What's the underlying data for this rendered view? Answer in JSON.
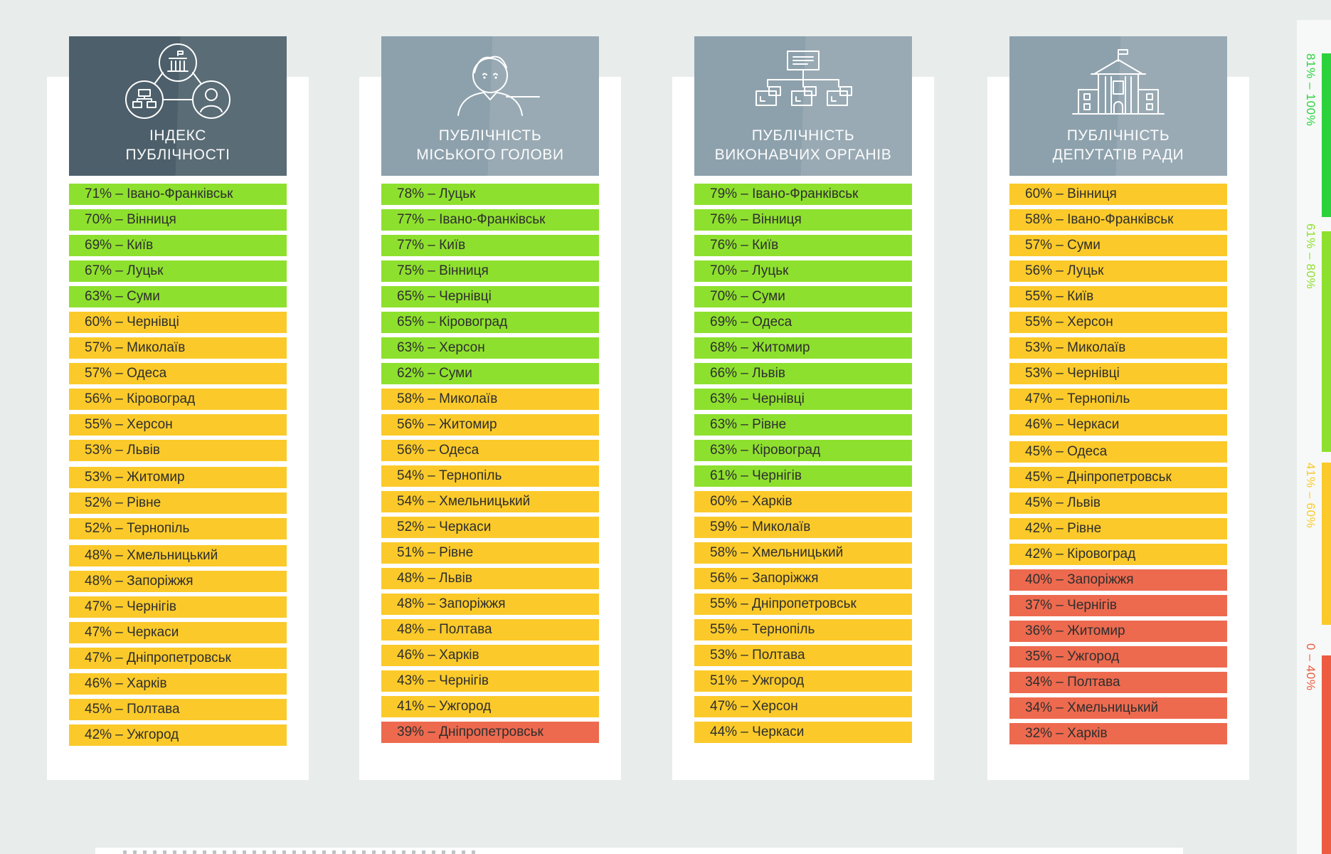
{
  "palette": {
    "background": "#E8EDEC",
    "panel": "#FFFFFF",
    "strip": "#F7F9F8",
    "green": "#8EE02E",
    "yellow": "#FBCA2A",
    "red": "#ED6A4F",
    "text": "#2E2E2E",
    "head_dark_left": "#4C5F6A",
    "head_dark_right": "#5A6C76",
    "head_light_left": "#8DA1AC",
    "head_light_right": "#99AAB4"
  },
  "legend": {
    "bands": [
      {
        "label": "81% – 100%",
        "color": "#2BD23C"
      },
      {
        "label": "61% – 80%",
        "color": "#8EE02E"
      },
      {
        "label": "41% – 60%",
        "color": "#FBCA2A"
      },
      {
        "label": "0 – 40%",
        "color": "#ED5B40"
      }
    ]
  },
  "columns": [
    {
      "title": "ІНДЕКС\nПУБЛІЧНОСТІ",
      "icon": "network-icon",
      "theme": "dark",
      "items": [
        {
          "label": "71% – Івано-Франківськ",
          "level": "green"
        },
        {
          "label": "70% – Вінниця",
          "level": "green"
        },
        {
          "label": "69% – Київ",
          "level": "green"
        },
        {
          "label": "67% – Луцьк",
          "level": "green"
        },
        {
          "label": "63% – Суми",
          "level": "green"
        },
        {
          "label": "60% – Чернівці",
          "level": "yellow"
        },
        {
          "label": "57% – Миколаїв",
          "level": "yellow"
        },
        {
          "label": "57% – Одеса",
          "level": "yellow"
        },
        {
          "label": "56% – Кіровоград",
          "level": "yellow"
        },
        {
          "label": "55% – Херсон",
          "level": "yellow"
        },
        {
          "label": "53% – Львів",
          "level": "yellow"
        },
        {
          "label": "53% – Житомир",
          "level": "yellow",
          "gap_before": true
        },
        {
          "label": "52% – Рівне",
          "level": "yellow"
        },
        {
          "label": "52% – Тернопіль",
          "level": "yellow"
        },
        {
          "label": "48% – Хмельницький",
          "level": "yellow",
          "gap_before": true
        },
        {
          "label": "48% – Запоріжжя",
          "level": "yellow"
        },
        {
          "label": "47% – Чернігів",
          "level": "yellow"
        },
        {
          "label": "47% – Черкаси",
          "level": "yellow"
        },
        {
          "label": "47% – Дніпропетровськ",
          "level": "yellow"
        },
        {
          "label": "46% – Харків",
          "level": "yellow"
        },
        {
          "label": "45% – Полтава",
          "level": "yellow"
        },
        {
          "label": "42% – Ужгород",
          "level": "yellow"
        }
      ]
    },
    {
      "title": "ПУБЛІЧНІСТЬ\nМІСЬКОГО ГОЛОВИ",
      "icon": "mayor-icon",
      "theme": "light",
      "items": [
        {
          "label": "78% – Луцьк",
          "level": "green"
        },
        {
          "label": "77% – Івано-Франківськ",
          "level": "green"
        },
        {
          "label": "77% – Київ",
          "level": "green"
        },
        {
          "label": "75% – Вінниця",
          "level": "green"
        },
        {
          "label": "65% – Чернівці",
          "level": "green"
        },
        {
          "label": "65% – Кіровоград",
          "level": "green"
        },
        {
          "label": "63% – Херсон",
          "level": "green"
        },
        {
          "label": "62% – Суми",
          "level": "green"
        },
        {
          "label": "58% – Миколаїв",
          "level": "yellow"
        },
        {
          "label": "56% – Житомир",
          "level": "yellow"
        },
        {
          "label": "56% – Одеса",
          "level": "yellow"
        },
        {
          "label": "54% – Тернопіль",
          "level": "yellow"
        },
        {
          "label": "54% – Хмельницький",
          "level": "yellow"
        },
        {
          "label": "52% – Черкаси",
          "level": "yellow"
        },
        {
          "label": "51% – Рівне",
          "level": "yellow"
        },
        {
          "label": "48% – Львів",
          "level": "yellow"
        },
        {
          "label": "48% – Запоріжжя",
          "level": "yellow"
        },
        {
          "label": "48% – Полтава",
          "level": "yellow"
        },
        {
          "label": "46% – Харків",
          "level": "yellow"
        },
        {
          "label": "43% – Чернігів",
          "level": "yellow"
        },
        {
          "label": "41% – Ужгород",
          "level": "yellow"
        },
        {
          "label": "39% – Дніпропетровськ",
          "level": "red"
        }
      ]
    },
    {
      "title": "ПУБЛІЧНІСТЬ\nВИКОНАВЧИХ ОРГАНІВ",
      "icon": "org-chart-icon",
      "theme": "light",
      "items": [
        {
          "label": "79% – Івано-Франківськ",
          "level": "green"
        },
        {
          "label": "76% – Вінниця",
          "level": "green"
        },
        {
          "label": "76% – Київ",
          "level": "green"
        },
        {
          "label": "70% – Луцьк",
          "level": "green"
        },
        {
          "label": "70% – Суми",
          "level": "green"
        },
        {
          "label": "69% – Одеса",
          "level": "green"
        },
        {
          "label": "68% – Житомир",
          "level": "green"
        },
        {
          "label": "66% – Львів",
          "level": "green"
        },
        {
          "label": "63% – Чернівці",
          "level": "green"
        },
        {
          "label": "63% – Рівне",
          "level": "green"
        },
        {
          "label": "63% – Кіровоград",
          "level": "green"
        },
        {
          "label": "61% – Чернігів",
          "level": "green"
        },
        {
          "label": "60% – Харків",
          "level": "yellow"
        },
        {
          "label": "59% – Миколаїв",
          "level": "yellow"
        },
        {
          "label": "58% – Хмельницький",
          "level": "yellow"
        },
        {
          "label": "56% – Запоріжжя",
          "level": "yellow"
        },
        {
          "label": "55% – Дніпропетровськ",
          "level": "yellow"
        },
        {
          "label": "55% – Тернопіль",
          "level": "yellow"
        },
        {
          "label": "53% – Полтава",
          "level": "yellow"
        },
        {
          "label": "51% – Ужгород",
          "level": "yellow"
        },
        {
          "label": "47% – Херсон",
          "level": "yellow"
        },
        {
          "label": "44% – Черкаси",
          "level": "yellow"
        }
      ]
    },
    {
      "title": "ПУБЛІЧНІСТЬ\nДЕПУТАТІВ РАДИ",
      "icon": "council-icon",
      "theme": "light",
      "items": [
        {
          "label": "60% – Вінниця",
          "level": "yellow"
        },
        {
          "label": "58% – Івано-Франківськ",
          "level": "yellow"
        },
        {
          "label": "57% – Суми",
          "level": "yellow"
        },
        {
          "label": "56% – Луцьк",
          "level": "yellow"
        },
        {
          "label": "55% – Київ",
          "level": "yellow"
        },
        {
          "label": "55% – Херсон",
          "level": "yellow"
        },
        {
          "label": "53% – Миколаїв",
          "level": "yellow"
        },
        {
          "label": "53% – Чернівці",
          "level": "yellow"
        },
        {
          "label": "47% – Тернопіль",
          "level": "yellow"
        },
        {
          "label": "46% – Черкаси",
          "level": "yellow"
        },
        {
          "label": "45% – Одеса",
          "level": "yellow",
          "gap_before": true
        },
        {
          "label": "45% – Дніпропетровськ",
          "level": "yellow"
        },
        {
          "label": "45% – Львів",
          "level": "yellow"
        },
        {
          "label": "42% – Рівне",
          "level": "yellow"
        },
        {
          "label": "42% – Кіровоград",
          "level": "yellow"
        },
        {
          "label": "40% – Запоріжжя",
          "level": "red"
        },
        {
          "label": "37% – Чернігів",
          "level": "red"
        },
        {
          "label": "36% – Житомир",
          "level": "red"
        },
        {
          "label": "35% – Ужгород",
          "level": "red"
        },
        {
          "label": "34% – Полтава",
          "level": "red"
        },
        {
          "label": "34% – Хмельницький",
          "level": "red"
        },
        {
          "label": "32% – Харків",
          "level": "red"
        }
      ]
    }
  ],
  "chart_data": {
    "type": "bar",
    "title": "",
    "legend_position": "right-edge-vertical",
    "legend_bands": [
      "81% – 100%",
      "61% – 80%",
      "41% – 60%",
      "0 – 40%"
    ],
    "series": [
      {
        "name": "ІНДЕКС ПУБЛІЧНОСТІ",
        "categories": [
          "Івано-Франківськ",
          "Вінниця",
          "Київ",
          "Луцьк",
          "Суми",
          "Чернівці",
          "Миколаїв",
          "Одеса",
          "Кіровоград",
          "Херсон",
          "Львів",
          "Житомир",
          "Рівне",
          "Тернопіль",
          "Хмельницький",
          "Запоріжжя",
          "Чернігів",
          "Черкаси",
          "Дніпропетровськ",
          "Харків",
          "Полтава",
          "Ужгород"
        ],
        "values": [
          71,
          70,
          69,
          67,
          63,
          60,
          57,
          57,
          56,
          55,
          53,
          53,
          52,
          52,
          48,
          48,
          47,
          47,
          47,
          46,
          45,
          42
        ]
      },
      {
        "name": "ПУБЛІЧНІСТЬ МІСЬКОГО ГОЛОВИ",
        "categories": [
          "Луцьк",
          "Івано-Франківськ",
          "Київ",
          "Вінниця",
          "Чернівці",
          "Кіровоград",
          "Херсон",
          "Суми",
          "Миколаїв",
          "Житомир",
          "Одеса",
          "Тернопіль",
          "Хмельницький",
          "Черкаси",
          "Рівне",
          "Львів",
          "Запоріжжя",
          "Полтава",
          "Харків",
          "Чернігів",
          "Ужгород",
          "Дніпропетровськ"
        ],
        "values": [
          78,
          77,
          77,
          75,
          65,
          65,
          63,
          62,
          58,
          56,
          56,
          54,
          54,
          52,
          51,
          48,
          48,
          48,
          46,
          43,
          41,
          39
        ]
      },
      {
        "name": "ПУБЛІЧНІСТЬ ВИКОНАВЧИХ ОРГАНІВ",
        "categories": [
          "Івано-Франківськ",
          "Вінниця",
          "Київ",
          "Луцьк",
          "Суми",
          "Одеса",
          "Житомир",
          "Львів",
          "Чернівці",
          "Рівне",
          "Кіровоград",
          "Чернігів",
          "Харків",
          "Миколаїв",
          "Хмельницький",
          "Запоріжжя",
          "Дніпропетровськ",
          "Тернопіль",
          "Полтава",
          "Ужгород",
          "Херсон",
          "Черкаси"
        ],
        "values": [
          79,
          76,
          76,
          70,
          70,
          69,
          68,
          66,
          63,
          63,
          63,
          61,
          60,
          59,
          58,
          56,
          55,
          55,
          53,
          51,
          47,
          44
        ]
      },
      {
        "name": "ПУБЛІЧНІСТЬ ДЕПУТАТІВ РАДИ",
        "categories": [
          "Вінниця",
          "Івано-Франківськ",
          "Суми",
          "Луцьк",
          "Київ",
          "Херсон",
          "Миколаїв",
          "Чернівці",
          "Тернопіль",
          "Черкаси",
          "Одеса",
          "Дніпропетровськ",
          "Львів",
          "Рівне",
          "Кіровоград",
          "Запоріжжя",
          "Чернігів",
          "Житомир",
          "Ужгород",
          "Полтава",
          "Хмельницький",
          "Харків"
        ],
        "values": [
          60,
          58,
          57,
          56,
          55,
          55,
          53,
          53,
          47,
          46,
          45,
          45,
          45,
          42,
          42,
          40,
          37,
          36,
          35,
          34,
          34,
          32
        ]
      }
    ],
    "value_unit": "%",
    "ylim": [
      0,
      100
    ]
  }
}
